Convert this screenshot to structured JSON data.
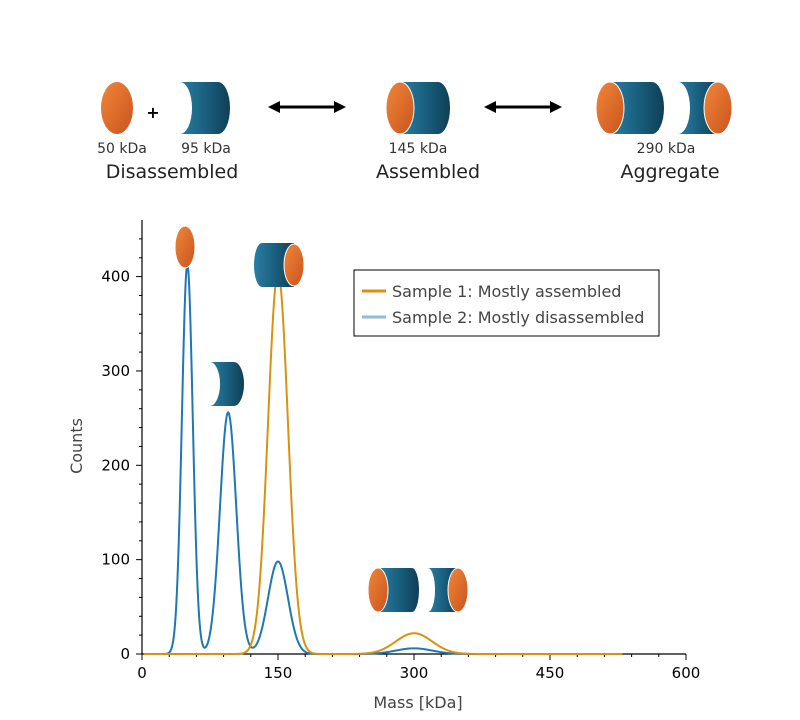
{
  "schema": {
    "plus": "+",
    "disassembled": {
      "mass_a": "50 kDa",
      "mass_b": "95 kDa",
      "label": "Disassembled"
    },
    "assembled": {
      "mass": "145 kDa",
      "label": "Assembled"
    },
    "aggregate": {
      "mass": "290 kDa",
      "label": "Aggregate"
    }
  },
  "colors": {
    "orange_piece": "#e8722c",
    "blue_piece": "#1a5f80",
    "sample1": "#d9920f",
    "sample2": "#1f77b4",
    "sample2_legend": "#8fbcd6"
  },
  "chart_data": {
    "type": "line",
    "xlabel": "Mass [kDa]",
    "ylabel": "Counts",
    "xlim": [
      0,
      600
    ],
    "ylim": [
      0,
      460
    ],
    "xticks": [
      0,
      150,
      300,
      450,
      600
    ],
    "yticks": [
      0,
      100,
      200,
      300,
      400
    ],
    "legend": {
      "placement": "top-right"
    },
    "series": [
      {
        "name": "Sample 1: Mostly assembled",
        "color": "#d9920f",
        "peaks": [
          {
            "center": 150,
            "height": 404,
            "width": 11
          },
          {
            "center": 300,
            "height": 22,
            "width": 20
          }
        ]
      },
      {
        "name": "Sample 2: Mostly disassembled",
        "color": "#1f77b4",
        "peaks": [
          {
            "center": 50,
            "height": 413,
            "width": 6
          },
          {
            "center": 95,
            "height": 256,
            "width": 9
          },
          {
            "center": 150,
            "height": 98,
            "width": 11
          },
          {
            "center": 300,
            "height": 6,
            "width": 20
          }
        ]
      }
    ]
  }
}
